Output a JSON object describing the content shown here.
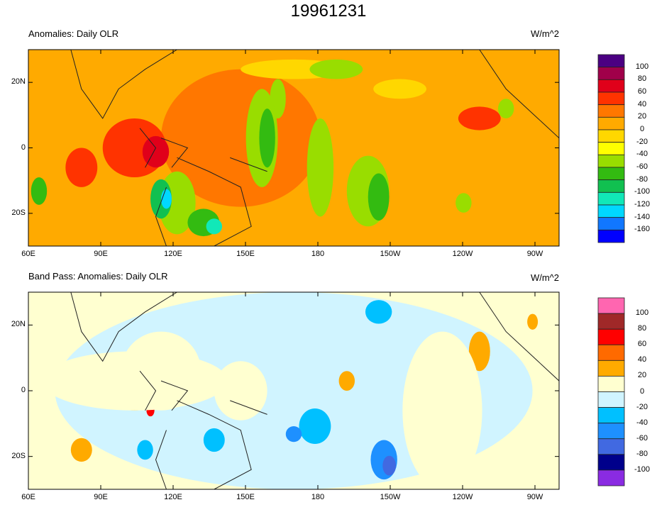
{
  "chart_data": [
    {
      "type": "heatmap",
      "title": "19961231",
      "subtitle": "Anomalies: Daily OLR",
      "units": "W/m^2",
      "xlim": [
        "60E",
        "80W"
      ],
      "ylim": [
        "30S",
        "30N"
      ],
      "xticks": [
        "60E",
        "90E",
        "120E",
        "150E",
        "180",
        "150W",
        "120W",
        "90W"
      ],
      "yticks": [
        "20N",
        "0",
        "20S"
      ],
      "levels": [
        "100",
        "80",
        "60",
        "40",
        "20",
        "0",
        "-20",
        "-40",
        "-60",
        "-80",
        "-100",
        "-120",
        "-140",
        "-160"
      ],
      "colors": [
        "#4b0082",
        "#a0004a",
        "#e0001a",
        "#ff3300",
        "#ff7700",
        "#ffaa00",
        "#ffd700",
        "#ffff00",
        "#99dd00",
        "#33bb11",
        "#11c050",
        "#11e8b8",
        "#00d8ff",
        "#1177ff",
        "#0000ff"
      ]
    },
    {
      "type": "heatmap",
      "subtitle": "Band Pass: Anomalies: Daily OLR",
      "units": "W/m^2",
      "xlim": [
        "60E",
        "80W"
      ],
      "ylim": [
        "30S",
        "30N"
      ],
      "xticks": [
        "60E",
        "90E",
        "120E",
        "150E",
        "180",
        "150W",
        "120W",
        "90W"
      ],
      "yticks": [
        "20N",
        "0",
        "20S"
      ],
      "levels": [
        "100",
        "80",
        "60",
        "40",
        "20",
        "0",
        "-20",
        "-40",
        "-60",
        "-80",
        "-100"
      ],
      "colors": [
        "#ff66b0",
        "#a02828",
        "#ff0000",
        "#ff6a00",
        "#ffaa00",
        "#ffffd0",
        "#d0f4ff",
        "#00c0ff",
        "#1e90ff",
        "#4169e1",
        "#00008b",
        "#8a2be2"
      ]
    }
  ]
}
